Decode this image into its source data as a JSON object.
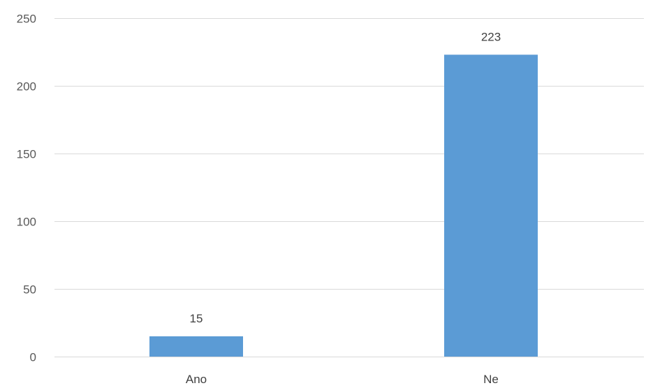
{
  "chart_data": {
    "type": "bar",
    "categories": [
      "Ano",
      "Ne"
    ],
    "values": [
      15,
      223
    ],
    "ylim": [
      0,
      250
    ],
    "yticks": [
      0,
      50,
      100,
      150,
      200,
      250
    ],
    "grid": true,
    "data_labels": true,
    "bar_color": "#5b9bd5",
    "title": "",
    "xlabel": "",
    "ylabel": ""
  }
}
